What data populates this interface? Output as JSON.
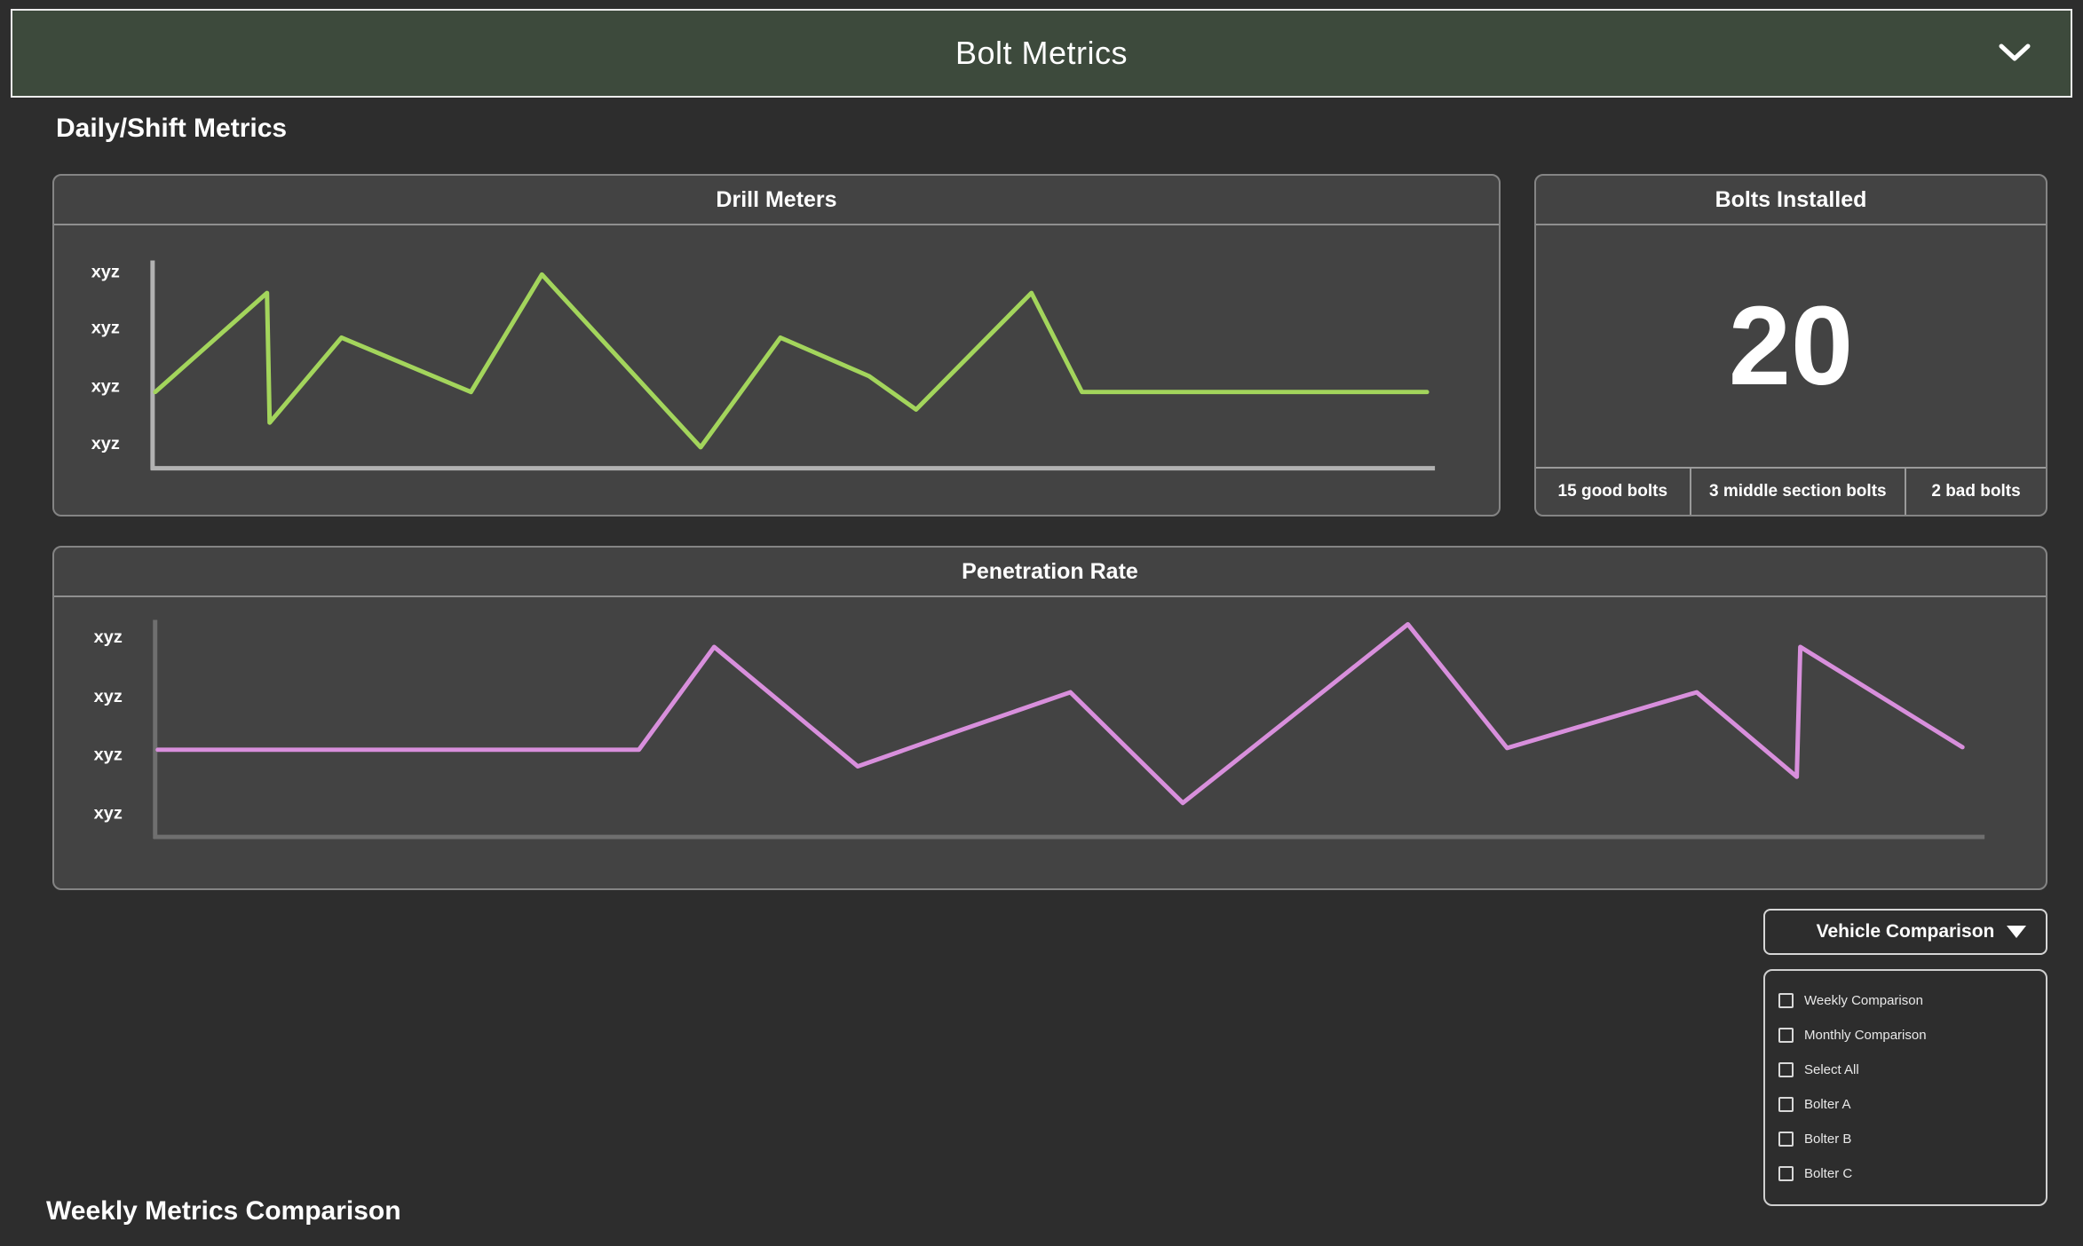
{
  "header": {
    "title": "Bolt Metrics"
  },
  "icons": {
    "header_chevron": "chevron-down",
    "vehicle_dropdown_arrow": "triangle-down",
    "option_checkbox": "empty-checkbox"
  },
  "colors": {
    "header_bg": "#3d4a3c",
    "page_bg": "#2d2d2d",
    "panel_bg": "#434343",
    "drill_line": "#a3d55c",
    "penetration_line": "#d88fdc"
  },
  "sections": {
    "daily_title": "Daily/Shift Metrics",
    "weekly_title": "Weekly Metrics Comparison"
  },
  "bolts_installed": {
    "title": "Bolts Installed",
    "value": "20",
    "stats": [
      "15 good bolts",
      "3 middle section bolts",
      "2 bad bolts"
    ]
  },
  "vehicle_comparison": {
    "button_label": "Vehicle Comparison",
    "options": [
      {
        "label": "Weekly Comparison",
        "checked": false
      },
      {
        "label": "Monthly Comparison",
        "checked": false
      },
      {
        "label": "Select All",
        "checked": false
      },
      {
        "label": "Bolter A",
        "checked": false
      },
      {
        "label": "Bolter B",
        "checked": false
      },
      {
        "label": "Bolter C",
        "checked": false
      }
    ]
  },
  "chart_data": [
    {
      "id": "drill",
      "type": "line",
      "title": "Drill Meters",
      "xlabel": "",
      "ylabel": "",
      "y_tick_labels": [
        "xyz",
        "xyz",
        "xyz",
        "xyz"
      ],
      "x_tick_labels": [],
      "legend": "none",
      "grid": false,
      "line_color": "#a3d55c",
      "axis_color": "#b2b2b2",
      "points": [
        [
          114,
          190
        ],
        [
          240,
          77
        ],
        [
          243,
          225
        ],
        [
          324,
          128
        ],
        [
          470,
          190
        ],
        [
          550,
          56
        ],
        [
          729,
          253
        ],
        [
          819,
          128
        ],
        [
          919,
          172
        ],
        [
          972,
          210
        ],
        [
          1102,
          77
        ],
        [
          1159,
          190
        ],
        [
          1548,
          190
        ]
      ]
    },
    {
      "id": "penetration",
      "type": "line",
      "title": "Penetration Rate",
      "xlabel": "",
      "ylabel": "",
      "y_tick_labels": [
        "xyz",
        "xyz",
        "xyz",
        "xyz"
      ],
      "x_tick_labels": [],
      "legend": "none",
      "grid": false,
      "line_color": "#d88fdc",
      "axis_color": "#6f6f6f",
      "points": [
        [
          117,
          175
        ],
        [
          660,
          175
        ],
        [
          745,
          57
        ],
        [
          907,
          194
        ],
        [
          1019,
          154
        ],
        [
          1147,
          109
        ],
        [
          1274,
          236
        ],
        [
          1528,
          31
        ],
        [
          1640,
          173
        ],
        [
          1854,
          109
        ],
        [
          1967,
          206
        ],
        [
          1971,
          57
        ],
        [
          2154,
          172
        ]
      ]
    }
  ]
}
